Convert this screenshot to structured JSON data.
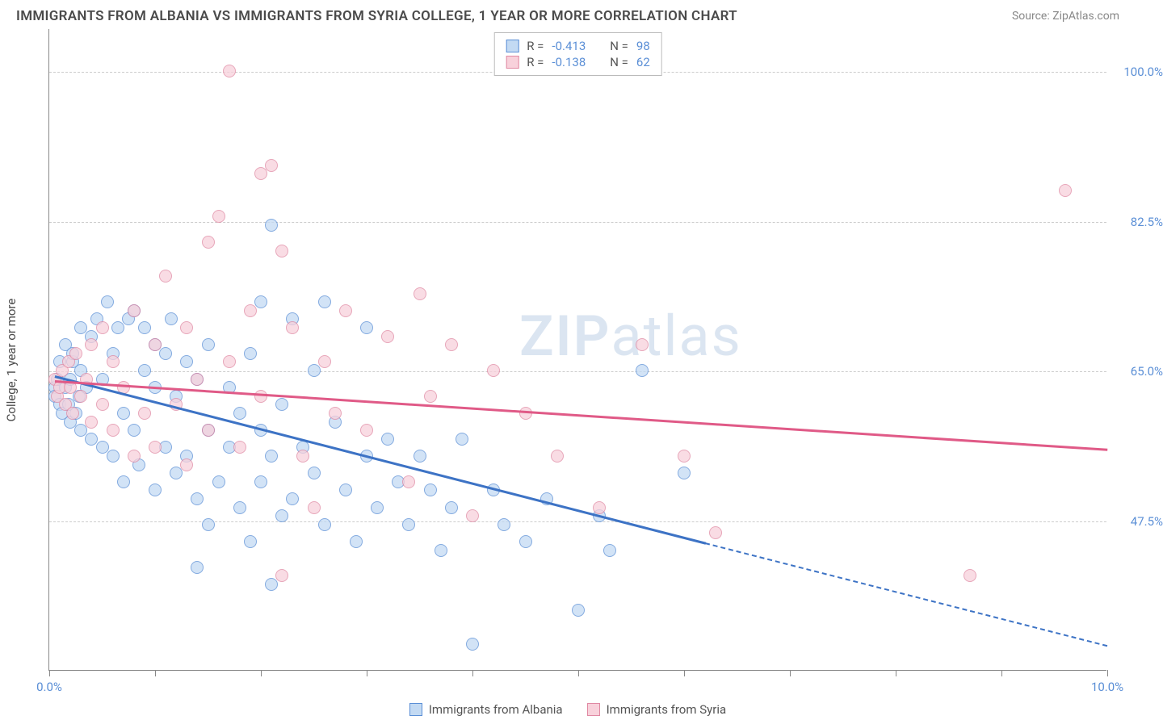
{
  "header": {
    "title": "IMMIGRANTS FROM ALBANIA VS IMMIGRANTS FROM SYRIA COLLEGE, 1 YEAR OR MORE CORRELATION CHART",
    "source": "Source: ZipAtlas.com"
  },
  "watermark": {
    "zip": "ZIP",
    "atlas": "atlas"
  },
  "chart": {
    "type": "scatter",
    "ylabel": "College, 1 year or more",
    "xlim": [
      0,
      10
    ],
    "ylim": [
      30,
      105
    ],
    "xticks": [
      0,
      1,
      2,
      3,
      4,
      5,
      6,
      7,
      8,
      9,
      10
    ],
    "xtick_labels": {
      "0": "0.0%",
      "10": "10.0%"
    },
    "yticks": [
      47.5,
      65.0,
      82.5,
      100.0
    ],
    "ytick_labels": [
      "47.5%",
      "65.0%",
      "82.5%",
      "100.0%"
    ],
    "grid_color": "#d5d5d5",
    "axis_color": "#888888",
    "background_color": "#ffffff",
    "tick_label_color": "#5b8fd6",
    "label_fontsize": 15,
    "title_fontsize": 17,
    "point_radius": 8,
    "point_opacity": 0.75,
    "series": [
      {
        "name": "Immigrants from Albania",
        "fill": "#c3daf3",
        "stroke": "#5b8fd6",
        "line_color": "#3d73c5",
        "R": "-0.413",
        "N": "98",
        "trend": {
          "x1": 0.05,
          "y1": 64.5,
          "x2": 6.2,
          "y2": 45.0,
          "solid_until_x": 6.2,
          "dash_to_x": 10.0,
          "dash_to_y": 33.0
        },
        "points": [
          [
            0.05,
            63
          ],
          [
            0.05,
            62
          ],
          [
            0.08,
            64
          ],
          [
            0.1,
            61
          ],
          [
            0.1,
            66
          ],
          [
            0.12,
            60
          ],
          [
            0.15,
            63
          ],
          [
            0.15,
            68
          ],
          [
            0.18,
            61
          ],
          [
            0.2,
            59
          ],
          [
            0.2,
            64
          ],
          [
            0.22,
            66
          ],
          [
            0.22,
            67
          ],
          [
            0.25,
            60
          ],
          [
            0.28,
            62
          ],
          [
            0.3,
            58
          ],
          [
            0.3,
            65
          ],
          [
            0.3,
            70
          ],
          [
            0.35,
            63
          ],
          [
            0.4,
            57
          ],
          [
            0.4,
            69
          ],
          [
            0.45,
            71
          ],
          [
            0.5,
            56
          ],
          [
            0.5,
            64
          ],
          [
            0.55,
            73
          ],
          [
            0.6,
            55
          ],
          [
            0.6,
            67
          ],
          [
            0.65,
            70
          ],
          [
            0.7,
            52
          ],
          [
            0.7,
            60
          ],
          [
            0.75,
            71
          ],
          [
            0.8,
            58
          ],
          [
            0.8,
            72
          ],
          [
            0.85,
            54
          ],
          [
            0.9,
            65
          ],
          [
            0.9,
            70
          ],
          [
            1.0,
            51
          ],
          [
            1.0,
            63
          ],
          [
            1.0,
            68
          ],
          [
            1.1,
            56
          ],
          [
            1.1,
            67
          ],
          [
            1.15,
            71
          ],
          [
            1.2,
            53
          ],
          [
            1.2,
            62
          ],
          [
            1.3,
            55
          ],
          [
            1.3,
            66
          ],
          [
            1.4,
            50
          ],
          [
            1.4,
            64
          ],
          [
            1.5,
            47
          ],
          [
            1.5,
            58
          ],
          [
            1.5,
            68
          ],
          [
            1.6,
            52
          ],
          [
            1.7,
            56
          ],
          [
            1.7,
            63
          ],
          [
            1.8,
            49
          ],
          [
            1.8,
            60
          ],
          [
            1.9,
            45
          ],
          [
            1.9,
            67
          ],
          [
            2.0,
            52
          ],
          [
            2.0,
            58
          ],
          [
            2.0,
            73
          ],
          [
            2.1,
            82
          ],
          [
            2.1,
            55
          ],
          [
            2.2,
            48
          ],
          [
            2.2,
            61
          ],
          [
            2.3,
            50
          ],
          [
            2.3,
            71
          ],
          [
            2.4,
            56
          ],
          [
            2.5,
            53
          ],
          [
            2.5,
            65
          ],
          [
            2.6,
            47
          ],
          [
            2.6,
            73
          ],
          [
            2.7,
            59
          ],
          [
            2.8,
            51
          ],
          [
            2.9,
            45
          ],
          [
            3.0,
            55
          ],
          [
            3.0,
            70
          ],
          [
            3.1,
            49
          ],
          [
            3.2,
            57
          ],
          [
            3.3,
            52
          ],
          [
            3.4,
            47
          ],
          [
            3.5,
            55
          ],
          [
            3.6,
            51
          ],
          [
            3.7,
            44
          ],
          [
            3.8,
            49
          ],
          [
            3.9,
            57
          ],
          [
            4.0,
            33
          ],
          [
            4.2,
            51
          ],
          [
            4.3,
            47
          ],
          [
            4.5,
            45
          ],
          [
            4.7,
            50
          ],
          [
            5.0,
            37
          ],
          [
            5.2,
            48
          ],
          [
            5.3,
            44
          ],
          [
            5.6,
            65
          ],
          [
            6.0,
            53
          ],
          [
            1.4,
            42
          ],
          [
            2.1,
            40
          ]
        ]
      },
      {
        "name": "Immigrants from Syria",
        "fill": "#f8d1db",
        "stroke": "#e089a3",
        "line_color": "#e05a87",
        "R": "-0.138",
        "N": "62",
        "trend": {
          "x1": 0.05,
          "y1": 64.0,
          "x2": 10.0,
          "y2": 56.0,
          "solid_until_x": 10.0
        },
        "points": [
          [
            0.05,
            64
          ],
          [
            0.08,
            62
          ],
          [
            0.1,
            63
          ],
          [
            0.12,
            65
          ],
          [
            0.15,
            61
          ],
          [
            0.18,
            66
          ],
          [
            0.2,
            63
          ],
          [
            0.22,
            60
          ],
          [
            0.25,
            67
          ],
          [
            0.3,
            62
          ],
          [
            0.35,
            64
          ],
          [
            0.4,
            59
          ],
          [
            0.4,
            68
          ],
          [
            0.5,
            61
          ],
          [
            0.5,
            70
          ],
          [
            0.6,
            58
          ],
          [
            0.6,
            66
          ],
          [
            0.7,
            63
          ],
          [
            0.8,
            55
          ],
          [
            0.8,
            72
          ],
          [
            0.9,
            60
          ],
          [
            1.0,
            56
          ],
          [
            1.0,
            68
          ],
          [
            1.1,
            76
          ],
          [
            1.2,
            61
          ],
          [
            1.3,
            54
          ],
          [
            1.3,
            70
          ],
          [
            1.4,
            64
          ],
          [
            1.5,
            80
          ],
          [
            1.5,
            58
          ],
          [
            1.6,
            83
          ],
          [
            1.7,
            66
          ],
          [
            1.8,
            56
          ],
          [
            1.9,
            72
          ],
          [
            2.0,
            88
          ],
          [
            2.0,
            62
          ],
          [
            2.1,
            89
          ],
          [
            2.2,
            79
          ],
          [
            2.3,
            70
          ],
          [
            2.4,
            55
          ],
          [
            2.5,
            49
          ],
          [
            2.6,
            66
          ],
          [
            2.7,
            60
          ],
          [
            2.8,
            72
          ],
          [
            3.0,
            58
          ],
          [
            3.2,
            69
          ],
          [
            3.4,
            52
          ],
          [
            3.5,
            74
          ],
          [
            3.6,
            62
          ],
          [
            3.8,
            68
          ],
          [
            4.0,
            48
          ],
          [
            4.2,
            65
          ],
          [
            4.5,
            60
          ],
          [
            4.8,
            55
          ],
          [
            5.2,
            49
          ],
          [
            5.6,
            68
          ],
          [
            6.0,
            55
          ],
          [
            6.3,
            46
          ],
          [
            1.7,
            100
          ],
          [
            8.7,
            41
          ],
          [
            9.6,
            86
          ],
          [
            2.2,
            41
          ]
        ]
      }
    ]
  },
  "legend_top": {
    "rows": [
      {
        "series_idx": 0
      },
      {
        "series_idx": 1
      }
    ],
    "r_label": "R =",
    "n_label": "N ="
  },
  "legend_bottom": {
    "items": [
      {
        "series_idx": 0
      },
      {
        "series_idx": 1
      }
    ]
  }
}
